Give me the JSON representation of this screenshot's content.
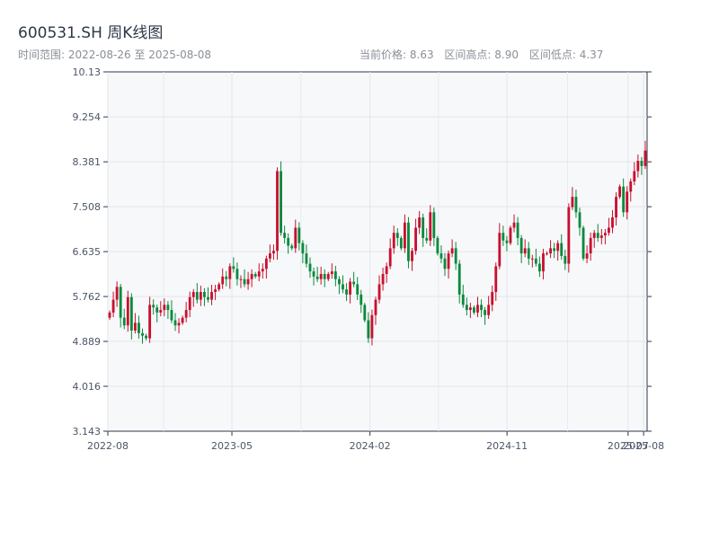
{
  "header": {
    "title": "600531.SH 周K线图",
    "range_label": "时间范围:",
    "range_start": "2022-08-26",
    "range_sep": "至",
    "range_end": "2025-08-08",
    "current_label": "当前价格:",
    "current_value": "8.63",
    "high_label": "区间高点:",
    "high_value": "8.90",
    "low_label": "区间低点:",
    "low_value": "4.37"
  },
  "chart_data": {
    "type": "candlestick",
    "title": "600531.SH 周K线图",
    "x_start": "2022-08-26",
    "x_end": "2025-08-08",
    "ylim": [
      3.143,
      10.13
    ],
    "y_ticks": [
      "3.143",
      "4.016",
      "4.889",
      "5.762",
      "6.635",
      "7.508",
      "8.381",
      "9.254",
      "10.13"
    ],
    "x_ticks": [
      "2022-08",
      "2023-05",
      "2024-02",
      "2024-11",
      "2025-07",
      "2025-08"
    ],
    "up_color": "#c8102e",
    "down_color": "#0a8a3c",
    "grid": true,
    "closes": [
      5.45,
      5.7,
      5.95,
      5.35,
      5.2,
      5.75,
      5.1,
      5.25,
      5.05,
      5.0,
      4.95,
      5.6,
      5.55,
      5.45,
      5.5,
      5.6,
      5.5,
      5.3,
      5.2,
      5.25,
      5.35,
      5.5,
      5.75,
      5.85,
      5.7,
      5.85,
      5.75,
      5.7,
      5.85,
      5.9,
      6.0,
      6.15,
      6.1,
      6.35,
      6.3,
      6.1,
      6.1,
      6.0,
      6.1,
      6.2,
      6.15,
      6.25,
      6.3,
      6.5,
      6.6,
      6.65,
      8.2,
      7.0,
      6.9,
      6.75,
      6.7,
      7.1,
      6.8,
      6.6,
      6.4,
      6.25,
      6.15,
      6.1,
      6.2,
      6.1,
      6.2,
      6.25,
      6.1,
      6.0,
      5.9,
      5.8,
      6.05,
      6.0,
      5.8,
      5.6,
      5.3,
      4.95,
      5.4,
      5.7,
      6.0,
      6.2,
      6.35,
      6.7,
      7.0,
      6.9,
      6.7,
      7.2,
      6.45,
      6.65,
      7.1,
      7.3,
      6.9,
      6.85,
      7.4,
      6.9,
      6.6,
      6.5,
      6.3,
      6.6,
      6.7,
      6.4,
      5.8,
      5.6,
      5.5,
      5.55,
      5.45,
      5.6,
      5.5,
      5.4,
      5.6,
      5.85,
      6.35,
      7.0,
      6.85,
      6.8,
      7.1,
      7.2,
      6.9,
      6.6,
      6.7,
      6.5,
      6.5,
      6.4,
      6.25,
      6.6,
      6.6,
      6.7,
      6.65,
      6.8,
      6.55,
      6.4,
      7.5,
      7.7,
      7.4,
      7.1,
      6.5,
      6.6,
      6.9,
      7.0,
      6.9,
      6.95,
      7.0,
      7.1,
      7.3,
      7.7,
      7.9,
      7.4,
      7.8,
      8.0,
      8.2,
      8.4,
      8.3,
      8.6
    ],
    "series_note": ""
  }
}
